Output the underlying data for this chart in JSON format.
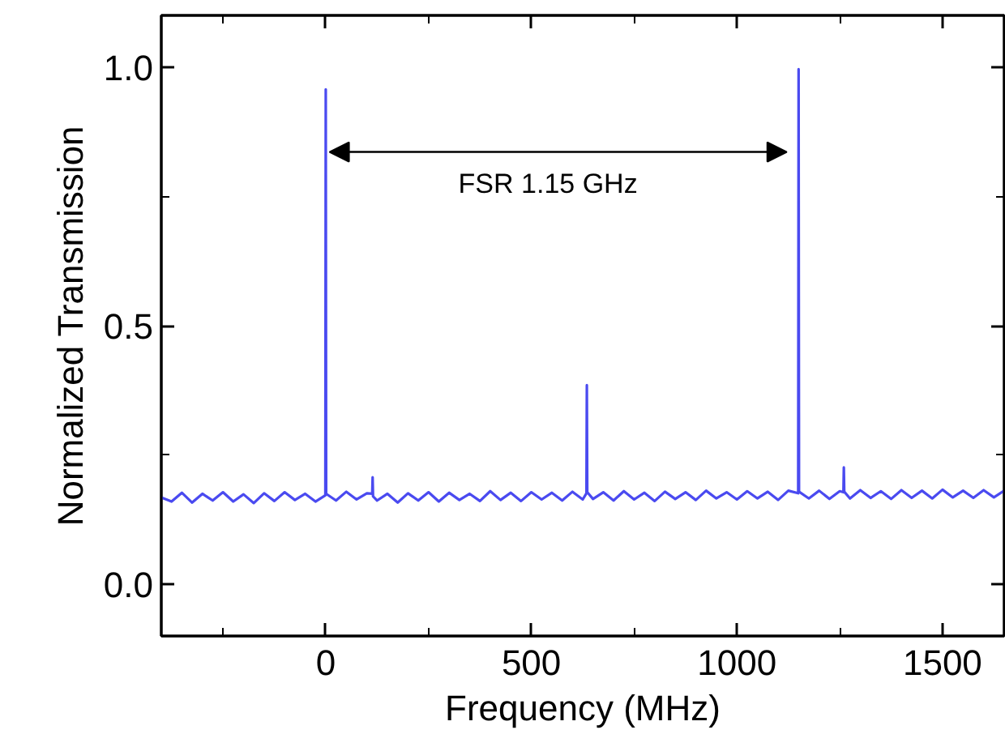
{
  "chart_data": {
    "type": "line",
    "xlabel": "Frequency (MHz)",
    "ylabel": "Normalized Transmission",
    "xlim": [
      -400,
      1650
    ],
    "ylim": [
      -0.1,
      1.1
    ],
    "xticks": [
      0,
      500,
      1000,
      1500
    ],
    "yticks": [
      {
        "value": 0,
        "label": "0.0"
      },
      {
        "value": 0.5,
        "label": "0.5"
      },
      {
        "value": 1,
        "label": "1.0"
      }
    ],
    "grid": false,
    "marker": "none",
    "line_style": "solid",
    "annotations": [
      "FSR 1.15 GHz"
    ],
    "series": [
      {
        "color": "#4a4af0",
        "x": [
          -400,
          -375,
          -350,
          -325,
          -300,
          -275,
          -250,
          -225,
          -200,
          -175,
          -150,
          -125,
          -100,
          -75,
          -50,
          -25,
          -1,
          0,
          1,
          25,
          50,
          75,
          100,
          113,
          114,
          115,
          125,
          150,
          175,
          200,
          225,
          250,
          275,
          300,
          325,
          350,
          375,
          400,
          425,
          450,
          475,
          500,
          525,
          550,
          575,
          600,
          625,
          634,
          635,
          636,
          650,
          675,
          700,
          725,
          750,
          775,
          800,
          825,
          850,
          875,
          900,
          925,
          950,
          975,
          1000,
          1025,
          1050,
          1075,
          1100,
          1125,
          1149,
          1150,
          1151,
          1175,
          1200,
          1225,
          1250,
          1259,
          1260,
          1261,
          1275,
          1300,
          1325,
          1350,
          1375,
          1400,
          1425,
          1450,
          1475,
          1500,
          1525,
          1550,
          1575,
          1600,
          1625,
          1650
        ],
        "values": [
          0.168,
          0.16,
          0.177,
          0.158,
          0.175,
          0.162,
          0.178,
          0.16,
          0.174,
          0.157,
          0.176,
          0.161,
          0.178,
          0.163,
          0.175,
          0.16,
          0.172,
          0.957,
          0.175,
          0.162,
          0.179,
          0.164,
          0.176,
          0.175,
          0.207,
          0.17,
          0.162,
          0.175,
          0.158,
          0.176,
          0.162,
          0.178,
          0.16,
          0.177,
          0.163,
          0.175,
          0.161,
          0.18,
          0.163,
          0.177,
          0.161,
          0.178,
          0.164,
          0.177,
          0.162,
          0.179,
          0.164,
          0.176,
          0.385,
          0.178,
          0.165,
          0.178,
          0.162,
          0.18,
          0.164,
          0.177,
          0.161,
          0.179,
          0.165,
          0.178,
          0.163,
          0.181,
          0.166,
          0.178,
          0.164,
          0.18,
          0.166,
          0.179,
          0.163,
          0.181,
          0.176,
          0.996,
          0.179,
          0.166,
          0.181,
          0.165,
          0.18,
          0.178,
          0.226,
          0.179,
          0.166,
          0.182,
          0.167,
          0.18,
          0.165,
          0.182,
          0.167,
          0.181,
          0.166,
          0.183,
          0.168,
          0.181,
          0.167,
          0.182,
          0.168,
          0.181
        ]
      }
    ]
  }
}
